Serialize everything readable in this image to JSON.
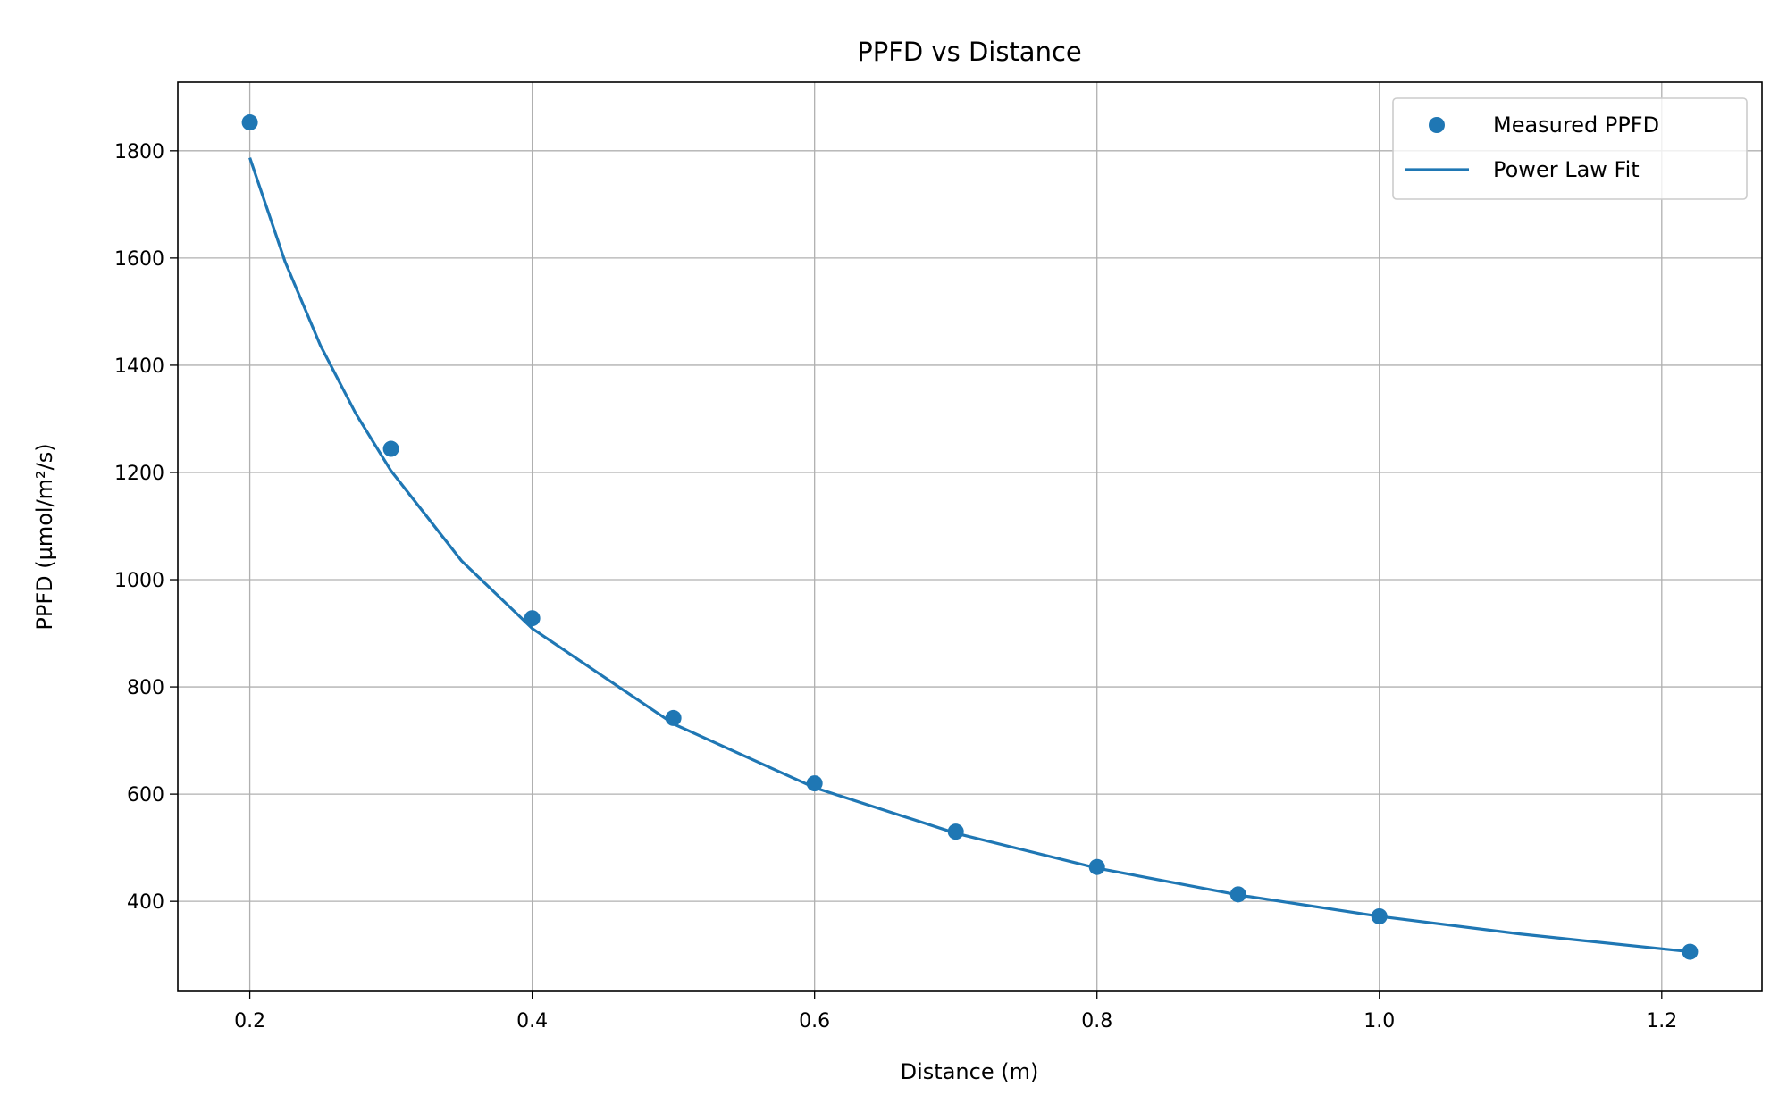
{
  "chart_data": {
    "type": "scatter",
    "title": "PPFD vs Distance",
    "xlabel": "Distance (m)",
    "ylabel": "PPFD (µmol/m²/s)",
    "xlim": [
      0.149,
      1.271
    ],
    "ylim": [
      232,
      1928
    ],
    "xticks": [
      0.2,
      0.4,
      0.6,
      0.8,
      1.0,
      1.2
    ],
    "xtick_labels": [
      "0.2",
      "0.4",
      "0.6",
      "0.8",
      "1.0",
      "1.2"
    ],
    "yticks": [
      400,
      600,
      800,
      1000,
      1200,
      1400,
      1600,
      1800
    ],
    "ytick_labels": [
      "400",
      "600",
      "800",
      "1000",
      "1200",
      "1400",
      "1600",
      "1800"
    ],
    "grid": true,
    "legend_position": "top-right",
    "color": "#1f77b4",
    "series": [
      {
        "name": "Measured PPFD",
        "kind": "scatter",
        "x": [
          0.2,
          0.3,
          0.4,
          0.5,
          0.6,
          0.7,
          0.8,
          0.9,
          1.0,
          1.22
        ],
        "y": [
          1853,
          1244,
          928,
          742,
          620,
          530,
          464,
          413,
          372,
          306
        ]
      },
      {
        "name": "Power Law Fit",
        "kind": "line",
        "x": [
          0.2,
          0.225,
          0.25,
          0.275,
          0.3,
          0.35,
          0.4,
          0.5,
          0.6,
          0.7,
          0.8,
          0.9,
          1.0,
          1.1,
          1.22
        ],
        "y": [
          1787,
          1593,
          1437,
          1310,
          1203,
          1035,
          909,
          731,
          612,
          527,
          462,
          412,
          372,
          339,
          306
        ]
      }
    ]
  }
}
